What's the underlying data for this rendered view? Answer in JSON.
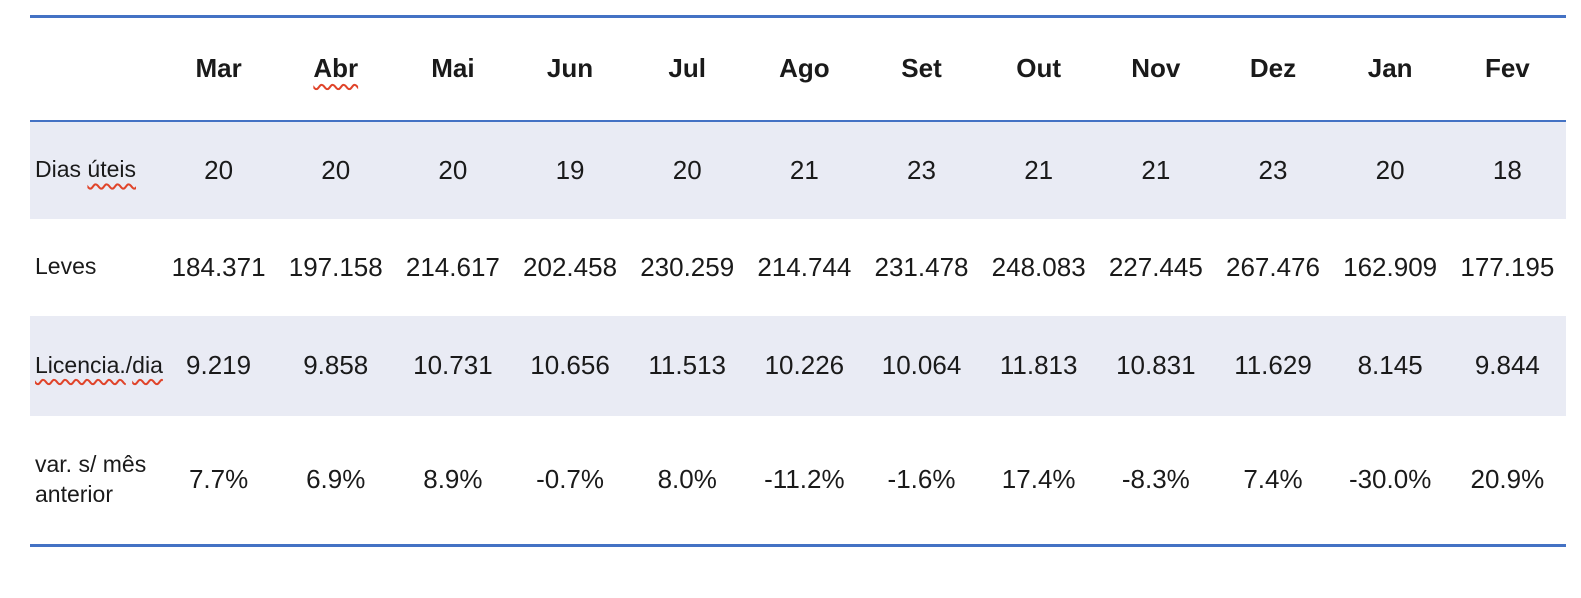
{
  "colors": {
    "table_border_blue": "#4472C4",
    "row_shading": "#E9EBF4",
    "spellcheck_red": "#E0442A",
    "text": "#1A1A1A"
  },
  "table": {
    "columns": [
      {
        "label": "Mar",
        "misspelled": false
      },
      {
        "label": "Abr",
        "misspelled": true
      },
      {
        "label": "Mai",
        "misspelled": false
      },
      {
        "label": "Jun",
        "misspelled": false
      },
      {
        "label": "Jul",
        "misspelled": false
      },
      {
        "label": "Ago",
        "misspelled": false
      },
      {
        "label": "Set",
        "misspelled": false
      },
      {
        "label": "Out",
        "misspelled": false
      },
      {
        "label": "Nov",
        "misspelled": false
      },
      {
        "label": "Dez",
        "misspelled": false
      },
      {
        "label": "Jan",
        "misspelled": false
      },
      {
        "label": "Fev",
        "misspelled": false
      }
    ],
    "rows": [
      {
        "name": "dias-uteis",
        "label_parts": [
          {
            "text": "Dias ",
            "misspelled": false
          },
          {
            "text": "úteis",
            "misspelled": true
          }
        ],
        "shaded": true,
        "values": [
          "20",
          "20",
          "20",
          "19",
          "20",
          "21",
          "23",
          "21",
          "21",
          "23",
          "20",
          "18"
        ]
      },
      {
        "name": "leves",
        "label_parts": [
          {
            "text": "Leves",
            "misspelled": false
          }
        ],
        "shaded": false,
        "values": [
          "184.371",
          "197.158",
          "214.617",
          "202.458",
          "230.259",
          "214.744",
          "231.478",
          "248.083",
          "227.445",
          "267.476",
          "162.909",
          "177.195"
        ]
      },
      {
        "name": "licencia-dia",
        "label_parts": [
          {
            "text": "Licencia.",
            "misspelled": true
          },
          {
            "text": "/",
            "misspelled": false
          },
          {
            "text": "dia",
            "misspelled": true
          }
        ],
        "shaded": true,
        "values": [
          "9.219",
          "9.858",
          "10.731",
          "10.656",
          "11.513",
          "10.226",
          "10.064",
          "11.813",
          "10.831",
          "11.629",
          "8.145",
          "9.844"
        ]
      },
      {
        "name": "var-mes-anterior",
        "label_parts": [
          {
            "text": "var. s/ mês anterior",
            "misspelled": false
          }
        ],
        "shaded": false,
        "values": [
          "7.7%",
          "6.9%",
          "8.9%",
          "-0.7%",
          "8.0%",
          "-11.2%",
          "-1.6%",
          "17.4%",
          "-8.3%",
          "7.4%",
          "-30.0%",
          "20.9%"
        ]
      }
    ]
  }
}
